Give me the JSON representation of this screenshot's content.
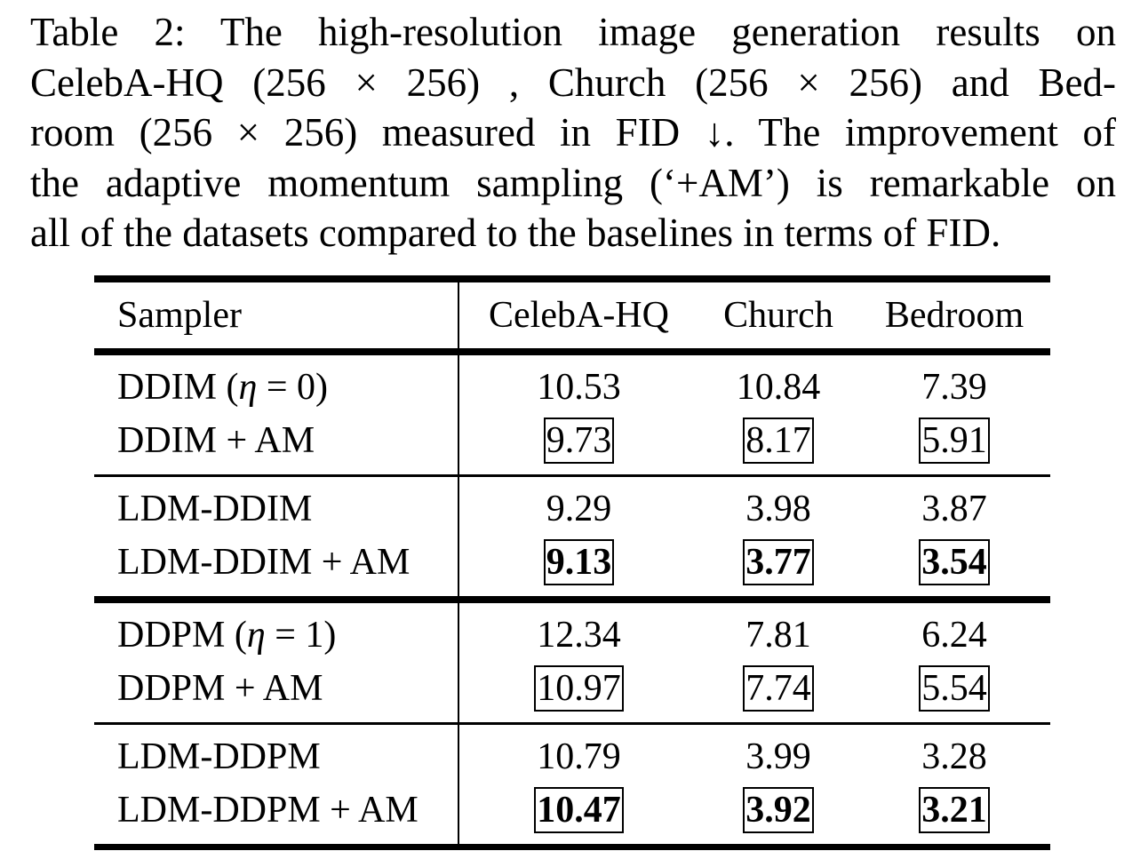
{
  "caption": {
    "lines": [
      "Table 2: The high-resolution image generation results on",
      "CelebA-HQ (256 × 256) , Church (256 × 256) and Bed-",
      "room (256 × 256) measured in FID ↓. The improvement of",
      "the adaptive momentum sampling (‘+AM’) is remarkable on",
      "all of the datasets compared to the baselines in terms of FID."
    ]
  },
  "table": {
    "headers": [
      "Sampler",
      "CelebA-HQ",
      "Church",
      "Bedroom"
    ],
    "groups": [
      {
        "rows": [
          {
            "sampler_prefix": "DDIM (",
            "sampler_math": "η",
            "sampler_suffix": " = 0)",
            "values": [
              "10.53",
              "10.84",
              "7.39"
            ],
            "boxed": false,
            "bold": false
          },
          {
            "sampler": "DDIM + AM",
            "values": [
              "9.73",
              "8.17",
              "5.91"
            ],
            "boxed": true,
            "bold": false
          }
        ]
      },
      {
        "rows": [
          {
            "sampler": "LDM-DDIM",
            "values": [
              "9.29",
              "3.98",
              "3.87"
            ],
            "boxed": false,
            "bold": false
          },
          {
            "sampler": "LDM-DDIM + AM",
            "values": [
              "9.13",
              "3.77",
              "3.54"
            ],
            "boxed": true,
            "bold": true
          }
        ]
      },
      {
        "rows": [
          {
            "sampler_prefix": "DDPM (",
            "sampler_math": "η",
            "sampler_suffix": " = 1)",
            "values": [
              "12.34",
              "7.81",
              "6.24"
            ],
            "boxed": false,
            "bold": false
          },
          {
            "sampler": "DDPM + AM",
            "values": [
              "10.97",
              "7.74",
              "5.54"
            ],
            "boxed": true,
            "bold": false
          }
        ]
      },
      {
        "rows": [
          {
            "sampler": "LDM-DDPM",
            "values": [
              "10.79",
              "3.99",
              "3.28"
            ],
            "boxed": false,
            "bold": false
          },
          {
            "sampler": "LDM-DDPM + AM",
            "values": [
              "10.47",
              "3.92",
              "3.21"
            ],
            "boxed": true,
            "bold": true
          }
        ]
      }
    ]
  }
}
